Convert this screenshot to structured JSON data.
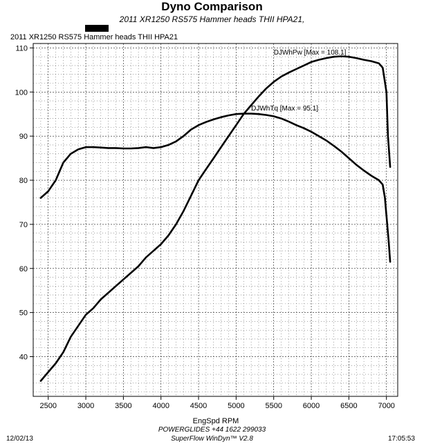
{
  "header": {
    "title": "Dyno Comparison",
    "subtitle": "2011 XR1250 RS575 Hammer heads THII HPA21,"
  },
  "legend": {
    "run_label": "2011 XR1250 RS575 Hammer heads THII HPA21",
    "swatch_color": "#000000"
  },
  "footer": {
    "date": "12/02/13",
    "time": "17:05:53",
    "shop": "POWERGLIDES +44 1622 299033",
    "software": "SuperFlow WinDyn™ V2.8"
  },
  "chart_data": {
    "type": "line",
    "title": "Dyno Comparison",
    "xlabel": "EngSpd  RPM",
    "ylabel": "",
    "xlim": [
      2300,
      7150
    ],
    "ylim": [
      31,
      111
    ],
    "x_ticks": [
      2500,
      3000,
      3500,
      4000,
      4500,
      5000,
      5500,
      6000,
      6500,
      7000
    ],
    "y_ticks": [
      40,
      50,
      60,
      70,
      80,
      90,
      100,
      110
    ],
    "x_minor_step": 100,
    "y_minor_step": 2,
    "grid": true,
    "series": [
      {
        "name": "DJWhPw",
        "annotation": "DJWhPw [Max = 108.1]",
        "annotation_at": [
          5500,
          108.5
        ],
        "color": "#000000",
        "x": [
          2400,
          2500,
          2600,
          2700,
          2800,
          2900,
          3000,
          3100,
          3200,
          3300,
          3400,
          3500,
          3600,
          3700,
          3800,
          3900,
          4000,
          4100,
          4200,
          4300,
          4400,
          4500,
          4600,
          4700,
          4800,
          4900,
          5000,
          5100,
          5200,
          5300,
          5400,
          5500,
          5600,
          5700,
          5800,
          5900,
          6000,
          6100,
          6200,
          6300,
          6400,
          6500,
          6600,
          6700,
          6800,
          6900,
          6950,
          7000,
          7020,
          7050
        ],
        "y": [
          34.5,
          36.5,
          38.5,
          41,
          44.5,
          47,
          49.5,
          51,
          53,
          54.5,
          56,
          57.5,
          59,
          60.5,
          62.5,
          64,
          65.5,
          67.5,
          70,
          73,
          76.5,
          80,
          82.5,
          85,
          87.5,
          90,
          92.5,
          95,
          97,
          99,
          100.8,
          102.3,
          103.5,
          104.4,
          105.2,
          106,
          106.8,
          107.3,
          107.7,
          108,
          108.1,
          108,
          107.7,
          107.3,
          107,
          106.5,
          105.5,
          100,
          90,
          83
        ]
      },
      {
        "name": "DJWhTq",
        "annotation": "DJWhTq [Max = 95.1]",
        "annotation_at": [
          5200,
          95.8
        ],
        "color": "#000000",
        "x": [
          2400,
          2500,
          2600,
          2700,
          2800,
          2900,
          3000,
          3100,
          3200,
          3300,
          3400,
          3500,
          3600,
          3700,
          3800,
          3900,
          4000,
          4100,
          4200,
          4300,
          4400,
          4500,
          4600,
          4700,
          4800,
          4900,
          5000,
          5100,
          5200,
          5300,
          5400,
          5500,
          5600,
          5700,
          5800,
          5900,
          6000,
          6100,
          6200,
          6300,
          6400,
          6500,
          6600,
          6700,
          6800,
          6900,
          6950,
          6980,
          7000,
          7030,
          7050
        ],
        "y": [
          76,
          77.5,
          80,
          84,
          86,
          87,
          87.5,
          87.5,
          87.4,
          87.3,
          87.3,
          87.2,
          87.2,
          87.3,
          87.5,
          87.3,
          87.5,
          88,
          88.8,
          90,
          91.5,
          92.5,
          93.2,
          93.8,
          94.3,
          94.7,
          95,
          95.1,
          95.1,
          95,
          94.8,
          94.5,
          94,
          93.3,
          92.5,
          91.8,
          91,
          90,
          89,
          87.8,
          86.5,
          85,
          83.5,
          82.2,
          81,
          80,
          79,
          76,
          72,
          66,
          61.5
        ]
      }
    ],
    "footer_texts": [
      "12/02/13",
      "POWERGLIDES +44 1622 299033",
      "SuperFlow WinDyn™ V2.8",
      "17:05:53"
    ]
  }
}
